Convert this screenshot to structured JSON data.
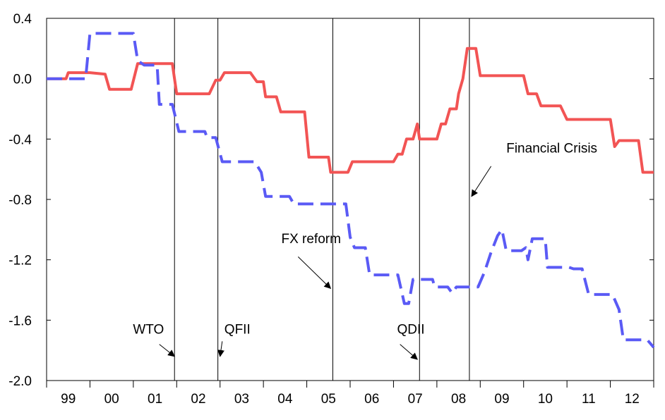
{
  "chart_data": {
    "type": "line",
    "xlabel": "",
    "ylabel": "",
    "xlim": [
      1999.0,
      2013.0
    ],
    "ylim": [
      -2.0,
      0.4
    ],
    "yticks": [
      "0.4",
      "0.0",
      "-0.4",
      "-0.8",
      "-1.2",
      "-1.6",
      "-2.0"
    ],
    "xticks": [
      {
        "label": "99",
        "x": 1999.5
      },
      {
        "label": "00",
        "x": 2000.5
      },
      {
        "label": "01",
        "x": 2001.5
      },
      {
        "label": "02",
        "x": 2002.5
      },
      {
        "label": "03",
        "x": 2003.5
      },
      {
        "label": "04",
        "x": 2004.5
      },
      {
        "label": "05",
        "x": 2005.5
      },
      {
        "label": "06",
        "x": 2006.5
      },
      {
        "label": "07",
        "x": 2007.5
      },
      {
        "label": "08",
        "x": 2008.5
      },
      {
        "label": "09",
        "x": 2009.5
      },
      {
        "label": "10",
        "x": 2010.5
      },
      {
        "label": "11",
        "x": 2011.5
      },
      {
        "label": "12",
        "x": 2012.5
      }
    ],
    "grid": false,
    "series": [
      {
        "color": "#f25454",
        "style": "solid",
        "points": [
          [
            1999.0,
            0.0
          ],
          [
            1999.45,
            0.0
          ],
          [
            1999.5,
            0.04
          ],
          [
            2000.0,
            0.04
          ],
          [
            2000.35,
            0.03
          ],
          [
            2000.45,
            -0.07
          ],
          [
            2000.95,
            -0.07
          ],
          [
            2001.1,
            0.1
          ],
          [
            2001.9,
            0.1
          ],
          [
            2002.0,
            -0.1
          ],
          [
            2002.75,
            -0.1
          ],
          [
            2002.9,
            -0.01
          ],
          [
            2003.0,
            -0.01
          ],
          [
            2003.1,
            0.04
          ],
          [
            2003.7,
            0.04
          ],
          [
            2003.85,
            -0.02
          ],
          [
            2004.0,
            -0.02
          ],
          [
            2004.05,
            -0.12
          ],
          [
            2004.3,
            -0.12
          ],
          [
            2004.4,
            -0.22
          ],
          [
            2004.95,
            -0.22
          ],
          [
            2005.05,
            -0.52
          ],
          [
            2005.5,
            -0.52
          ],
          [
            2005.55,
            -0.62
          ],
          [
            2005.95,
            -0.62
          ],
          [
            2006.05,
            -0.55
          ],
          [
            2007.0,
            -0.55
          ],
          [
            2007.1,
            -0.5
          ],
          [
            2007.2,
            -0.5
          ],
          [
            2007.3,
            -0.4
          ],
          [
            2007.45,
            -0.4
          ],
          [
            2007.55,
            -0.3
          ],
          [
            2007.6,
            -0.4
          ],
          [
            2008.0,
            -0.4
          ],
          [
            2008.1,
            -0.3
          ],
          [
            2008.2,
            -0.3
          ],
          [
            2008.3,
            -0.2
          ],
          [
            2008.45,
            -0.2
          ],
          [
            2008.5,
            -0.1
          ],
          [
            2008.6,
            0.0
          ],
          [
            2008.7,
            0.2
          ],
          [
            2008.9,
            0.2
          ],
          [
            2009.0,
            0.02
          ],
          [
            2010.0,
            0.02
          ],
          [
            2010.1,
            -0.1
          ],
          [
            2010.3,
            -0.1
          ],
          [
            2010.4,
            -0.18
          ],
          [
            2010.85,
            -0.18
          ],
          [
            2011.0,
            -0.27
          ],
          [
            2012.0,
            -0.27
          ],
          [
            2012.1,
            -0.45
          ],
          [
            2012.2,
            -0.41
          ],
          [
            2012.65,
            -0.41
          ],
          [
            2012.75,
            -0.62
          ],
          [
            2013.0,
            -0.62
          ]
        ]
      },
      {
        "color": "#5a5af5",
        "style": "dashed",
        "points": [
          [
            1999.0,
            0.0
          ],
          [
            1999.9,
            0.0
          ],
          [
            2000.0,
            0.3
          ],
          [
            2001.0,
            0.3
          ],
          [
            2001.1,
            0.12
          ],
          [
            2001.25,
            0.09
          ],
          [
            2001.55,
            0.09
          ],
          [
            2001.6,
            -0.17
          ],
          [
            2001.9,
            -0.17
          ],
          [
            2002.05,
            -0.35
          ],
          [
            2002.65,
            -0.35
          ],
          [
            2002.7,
            -0.39
          ],
          [
            2002.9,
            -0.39
          ],
          [
            2003.05,
            -0.55
          ],
          [
            2003.8,
            -0.55
          ],
          [
            2003.95,
            -0.62
          ],
          [
            2004.05,
            -0.78
          ],
          [
            2004.6,
            -0.78
          ],
          [
            2004.7,
            -0.83
          ],
          [
            2005.9,
            -0.83
          ],
          [
            2006.0,
            -1.05
          ],
          [
            2006.1,
            -1.12
          ],
          [
            2006.35,
            -1.12
          ],
          [
            2006.45,
            -1.3
          ],
          [
            2006.9,
            -1.3
          ],
          [
            2007.1,
            -1.3
          ],
          [
            2007.25,
            -1.49
          ],
          [
            2007.35,
            -1.49
          ],
          [
            2007.45,
            -1.33
          ],
          [
            2007.9,
            -1.33
          ],
          [
            2007.95,
            -1.38
          ],
          [
            2008.25,
            -1.38
          ],
          [
            2008.35,
            -1.42
          ],
          [
            2008.45,
            -1.38
          ],
          [
            2008.95,
            -1.38
          ],
          [
            2009.1,
            -1.28
          ],
          [
            2009.25,
            -1.15
          ],
          [
            2009.4,
            -1.04
          ],
          [
            2009.5,
            -1.0
          ],
          [
            2009.6,
            -1.14
          ],
          [
            2009.95,
            -1.14
          ],
          [
            2010.05,
            -1.12
          ],
          [
            2010.1,
            -1.2
          ],
          [
            2010.2,
            -1.06
          ],
          [
            2010.5,
            -1.06
          ],
          [
            2010.55,
            -1.25
          ],
          [
            2011.05,
            -1.25
          ],
          [
            2011.15,
            -1.26
          ],
          [
            2011.35,
            -1.26
          ],
          [
            2011.5,
            -1.43
          ],
          [
            2012.05,
            -1.43
          ],
          [
            2012.2,
            -1.53
          ],
          [
            2012.3,
            -1.73
          ],
          [
            2012.85,
            -1.73
          ],
          [
            2013.0,
            -1.78
          ]
        ]
      }
    ],
    "events": [
      {
        "label": "WTO",
        "x": 2001.95
      },
      {
        "label": "QFII",
        "x": 2002.95
      },
      {
        "label": "FX reform",
        "x": 2005.6
      },
      {
        "label": "QDII",
        "x": 2007.6
      },
      {
        "label": "Financial Crisis",
        "x": 2008.75
      }
    ],
    "annotations": [
      {
        "text": "WTO",
        "tx": 2001.35,
        "ty": -1.69,
        "ax1": 2001.6,
        "ay1": -1.76,
        "ax2": 2001.95,
        "ay2": -1.84
      },
      {
        "text": "QFII",
        "tx": 2003.4,
        "ty": -1.69,
        "ax1": 2003.05,
        "ay1": -1.74,
        "ax2": 2003.0,
        "ay2": -1.84
      },
      {
        "text": "FX reform",
        "tx": 2005.1,
        "ty": -1.09,
        "ax1": 2004.8,
        "ay1": -1.18,
        "ax2": 2005.55,
        "ay2": -1.39
      },
      {
        "text": "QDII",
        "tx": 2007.4,
        "ty": -1.69,
        "ax1": 2007.15,
        "ay1": -1.76,
        "ax2": 2007.55,
        "ay2": -1.86
      },
      {
        "text": "Financial Crisis",
        "tx": 2010.65,
        "ty": -0.49,
        "ax1": 2009.25,
        "ay1": -0.58,
        "ax2": 2008.8,
        "ay2": -0.78
      }
    ]
  }
}
